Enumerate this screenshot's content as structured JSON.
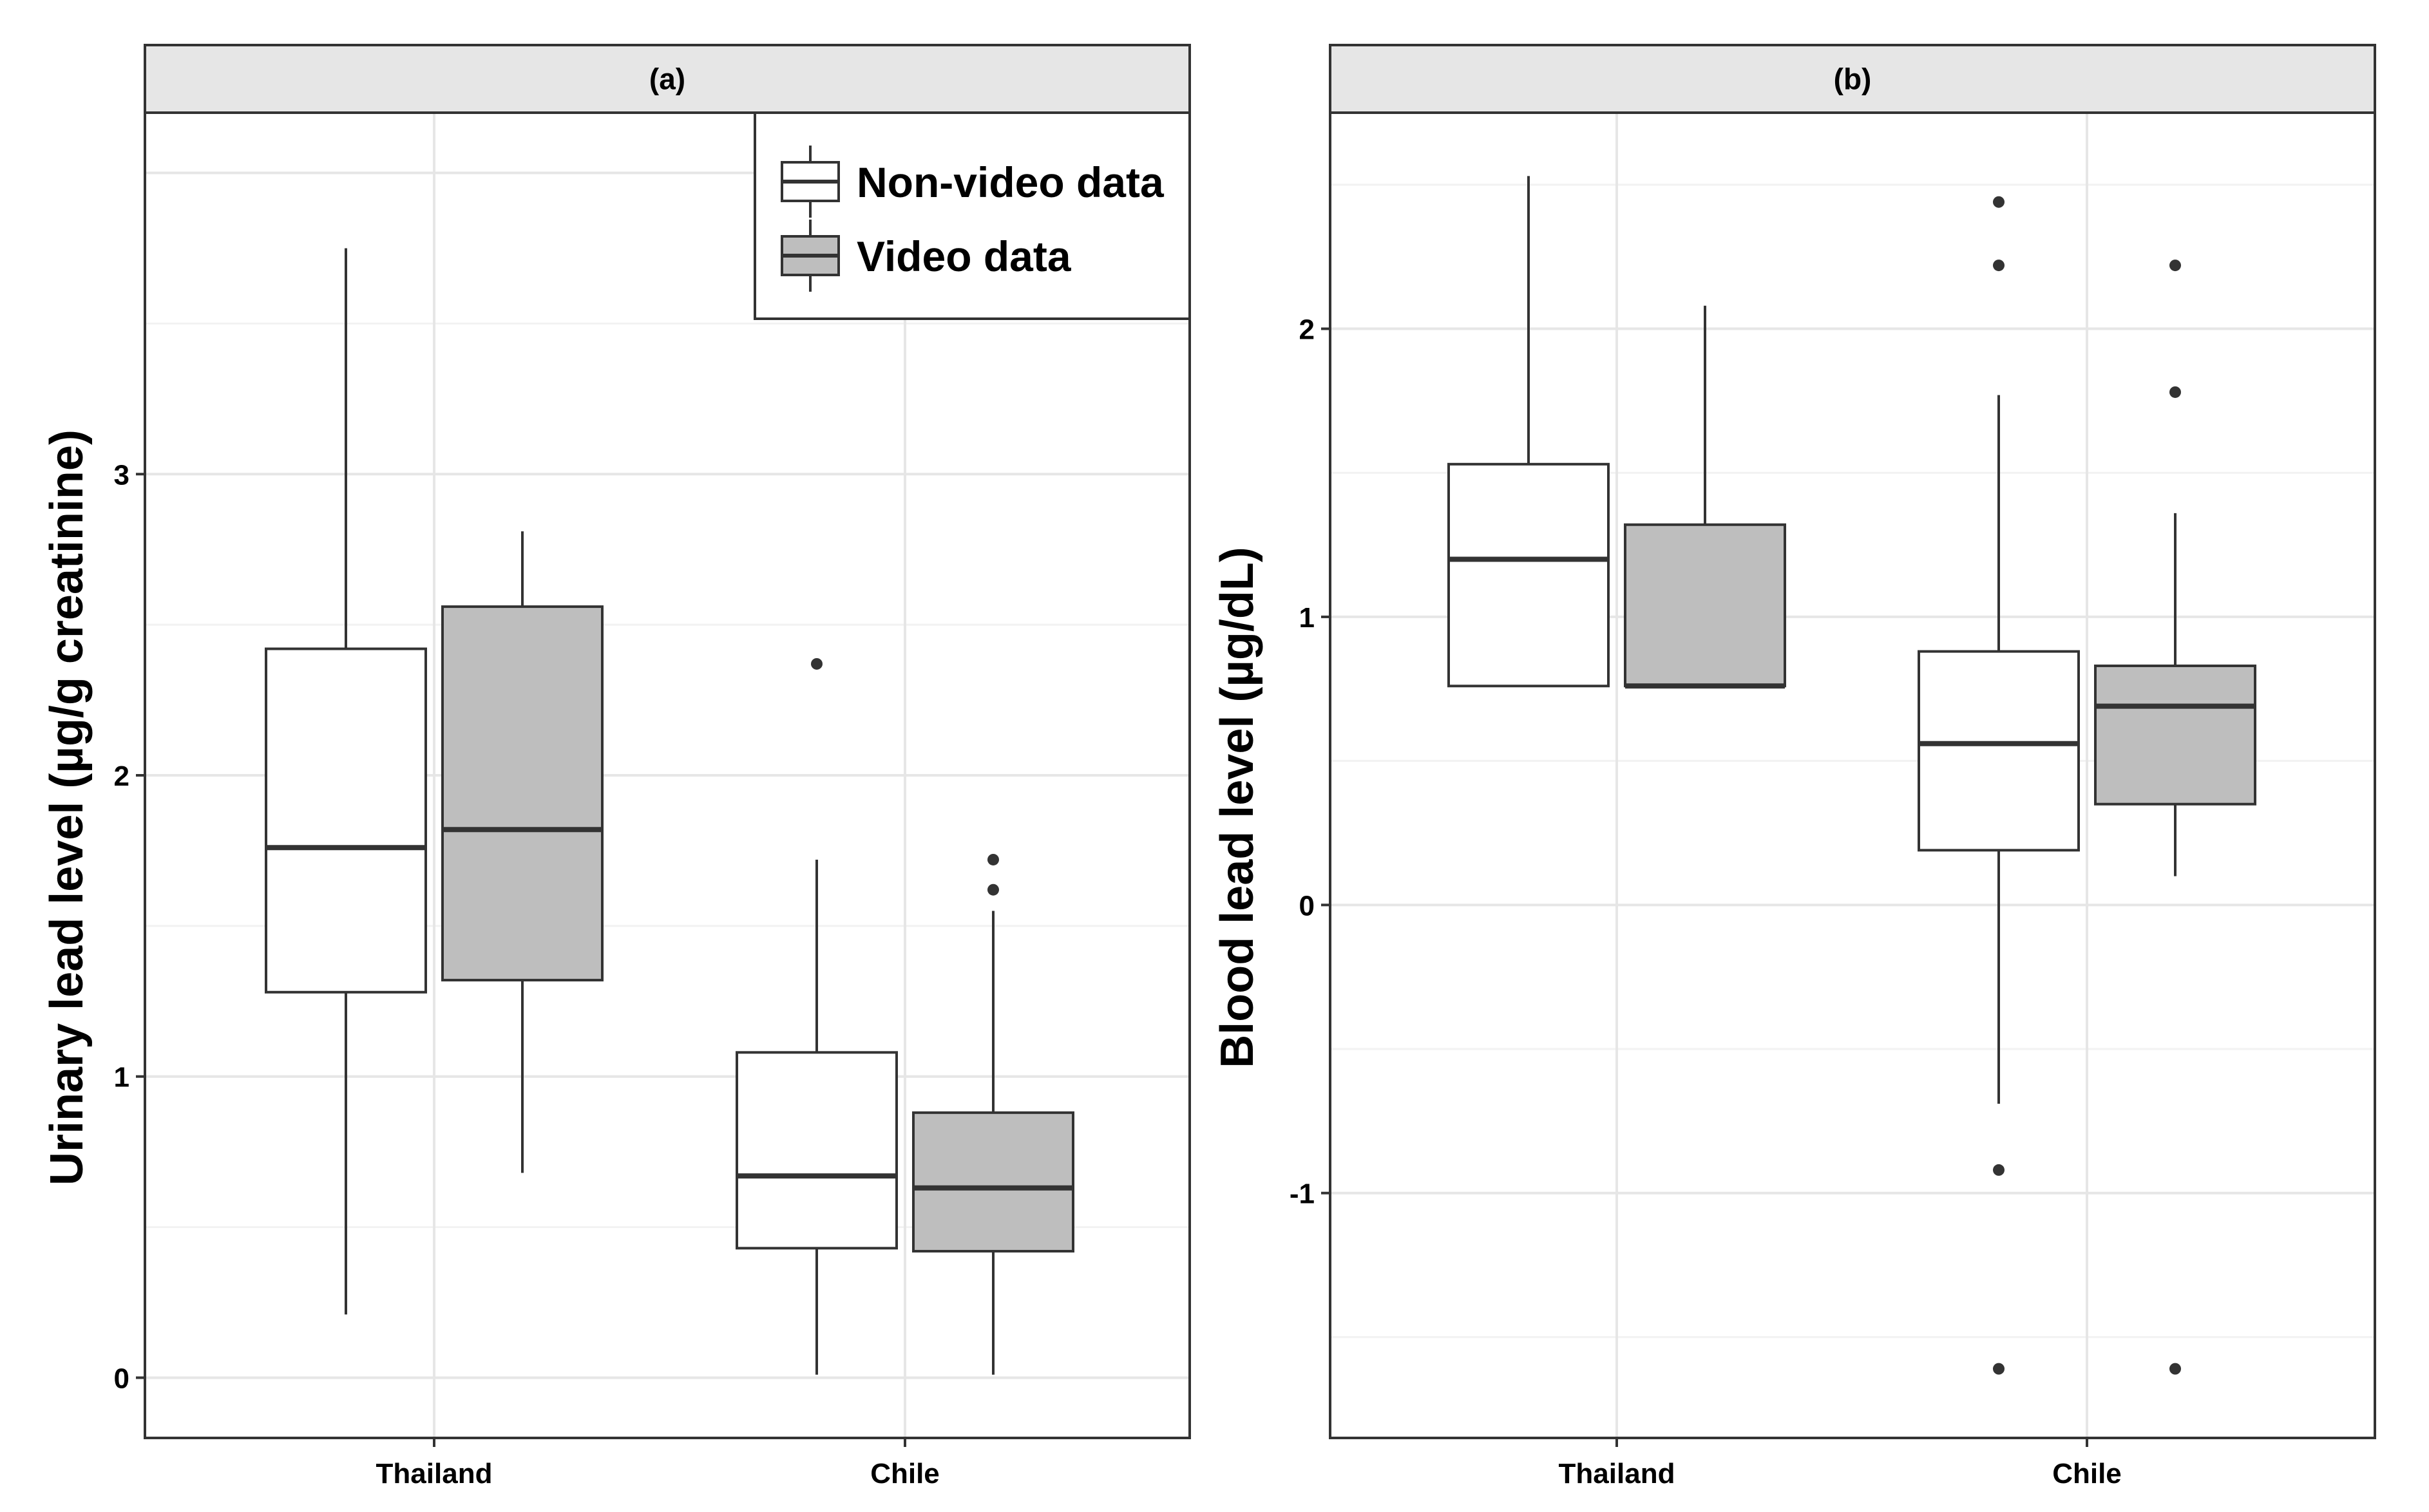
{
  "chart_data": [
    {
      "type": "box",
      "panel": "(a)",
      "ylabel": "Urinary lead level (µg/g creatinine)",
      "xlabel": "",
      "categories": [
        "Thailand",
        "Chile"
      ],
      "ylim": [
        -0.2,
        4.2
      ],
      "yticks": [
        0,
        1,
        2,
        3
      ],
      "grid": true,
      "legend": {
        "position": "top-right",
        "entries": [
          {
            "label": "Non-video data",
            "fill": "#ffffff"
          },
          {
            "label": "Video data",
            "fill": "#bebebe"
          }
        ]
      },
      "series": [
        {
          "name": "Non-video data",
          "fill": "#ffffff",
          "boxes": [
            {
              "category": "Thailand",
              "min": 0.21,
              "q1": 1.28,
              "median": 1.76,
              "q3": 2.42,
              "max": 3.75,
              "outliers": []
            },
            {
              "category": "Chile",
              "min": 0.01,
              "q1": 0.43,
              "median": 0.67,
              "q3": 1.08,
              "max": 1.72,
              "outliers": [
                2.37
              ]
            }
          ]
        },
        {
          "name": "Video data",
          "fill": "#bebebe",
          "boxes": [
            {
              "category": "Thailand",
              "min": 0.68,
              "q1": 1.32,
              "median": 1.82,
              "q3": 2.56,
              "max": 2.81,
              "outliers": []
            },
            {
              "category": "Chile",
              "min": 0.01,
              "q1": 0.42,
              "median": 0.63,
              "q3": 0.88,
              "max": 1.55,
              "outliers": [
                1.62,
                1.72
              ]
            }
          ]
        }
      ]
    },
    {
      "type": "box",
      "panel": "(b)",
      "ylabel": "Blood lead level (µg/dL)",
      "xlabel": "",
      "categories": [
        "Thailand",
        "Chile"
      ],
      "ylim": [
        -1.85,
        2.75
      ],
      "yticks": [
        -1,
        0,
        1,
        2
      ],
      "grid": true,
      "series": [
        {
          "name": "Non-video data",
          "fill": "#ffffff",
          "boxes": [
            {
              "category": "Thailand",
              "min": 0.76,
              "q1": 0.76,
              "median": 1.2,
              "q3": 1.53,
              "max": 2.53,
              "outliers": []
            },
            {
              "category": "Chile",
              "min": -0.69,
              "q1": 0.19,
              "median": 0.56,
              "q3": 0.88,
              "max": 1.77,
              "outliers": [
                2.44,
                2.22,
                -0.92,
                -1.61
              ]
            }
          ]
        },
        {
          "name": "Video data",
          "fill": "#bebebe",
          "boxes": [
            {
              "category": "Thailand",
              "min": 0.76,
              "q1": 0.76,
              "median": 0.76,
              "q3": 1.32,
              "max": 2.08,
              "outliers": []
            },
            {
              "category": "Chile",
              "min": 0.1,
              "q1": 0.35,
              "median": 0.69,
              "q3": 0.83,
              "max": 1.36,
              "outliers": [
                2.22,
                1.78,
                -1.61
              ]
            }
          ]
        }
      ]
    }
  ]
}
